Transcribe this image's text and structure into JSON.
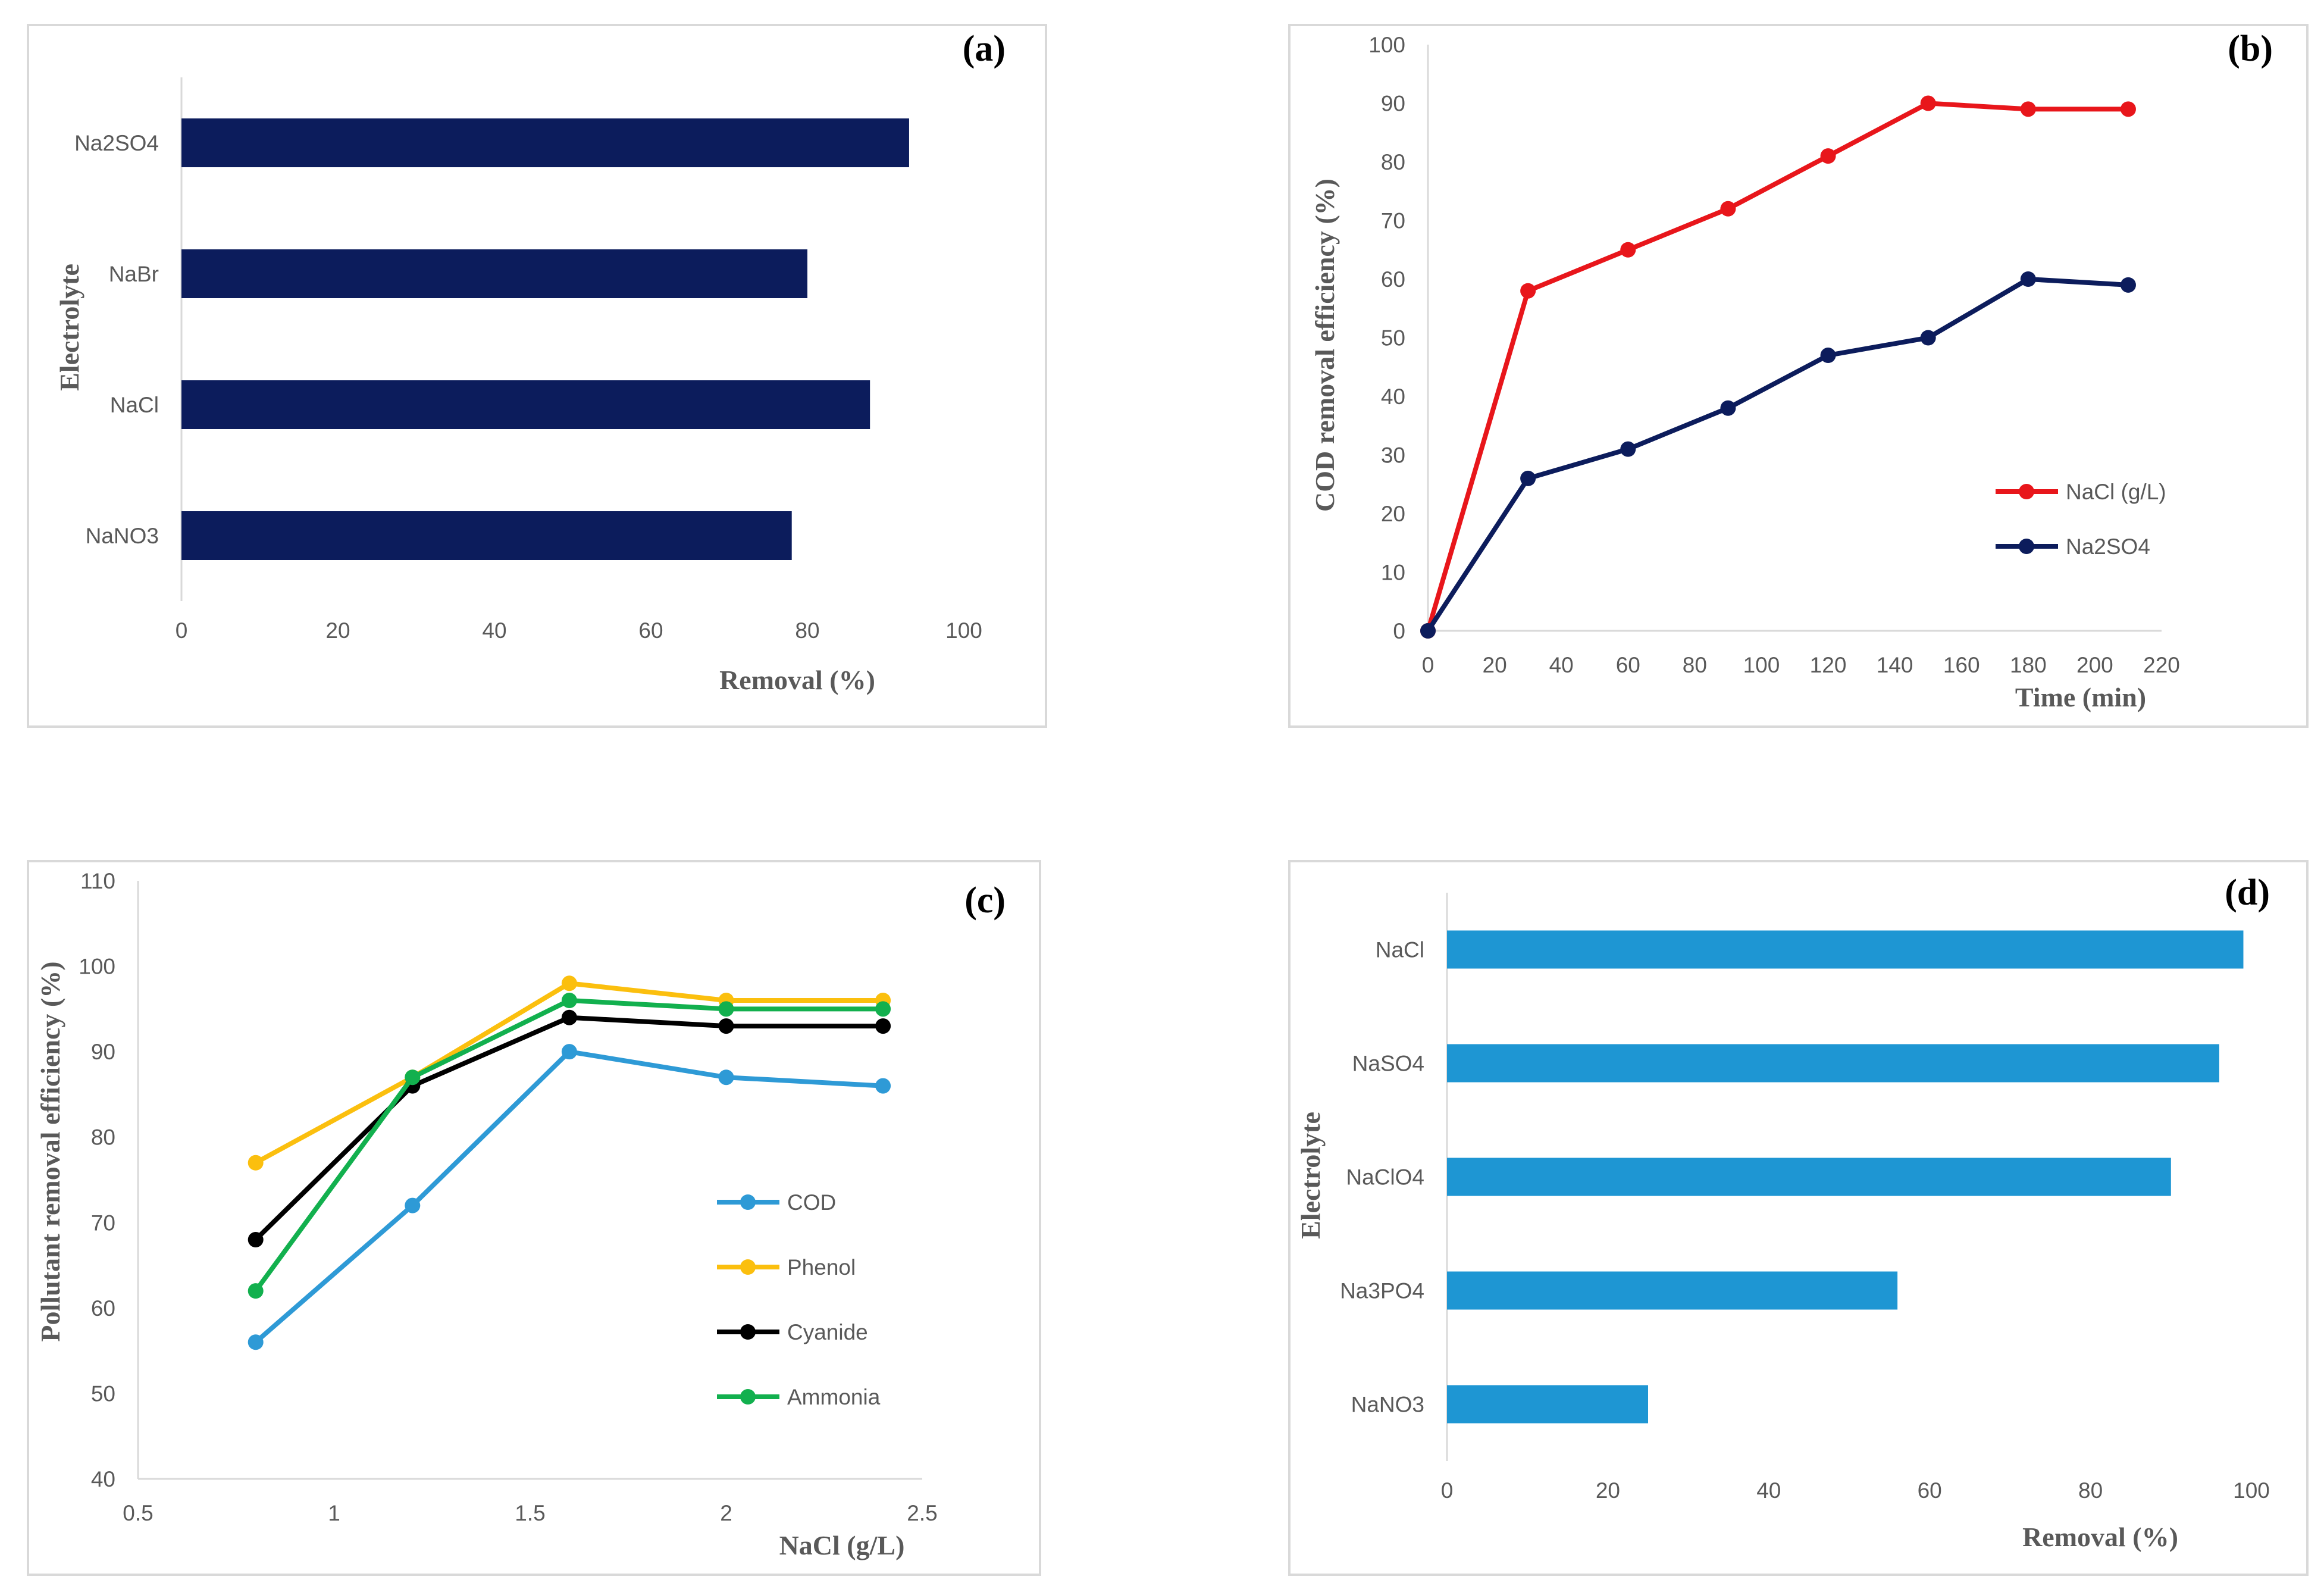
{
  "chart_data": [
    {
      "id": "a",
      "panel_label": "(a)",
      "type": "bar",
      "orientation": "horizontal",
      "categories": [
        "Na2SO4",
        "NaBr",
        "NaCl",
        "NaNO3"
      ],
      "values": [
        93,
        80,
        88,
        78
      ],
      "color": "#0c1c5c",
      "xlabel": "Removal (%)",
      "ylabel": "Electrolyte",
      "xlim": [
        0,
        100
      ],
      "xticks": [
        0,
        20,
        40,
        60,
        80,
        100
      ],
      "grid": false
    },
    {
      "id": "b",
      "panel_label": "(b)",
      "type": "line",
      "xlabel": "Time (min)",
      "ylabel": "COD removal efficiency (%)",
      "xlim": [
        0,
        220
      ],
      "ylim": [
        0,
        100
      ],
      "xticks": [
        0,
        20,
        40,
        60,
        80,
        100,
        120,
        140,
        160,
        180,
        200,
        220
      ],
      "yticks": [
        0,
        10,
        20,
        30,
        40,
        50,
        60,
        70,
        80,
        90,
        100
      ],
      "x": [
        0,
        30,
        60,
        90,
        120,
        150,
        180,
        210
      ],
      "series": [
        {
          "name": "NaCl (g/L)",
          "color": "#e8161b",
          "values": [
            0,
            58,
            65,
            72,
            81,
            90,
            89,
            89
          ]
        },
        {
          "name": "Na2SO4",
          "color": "#0c1c5c",
          "values": [
            0,
            26,
            31,
            38,
            47,
            50,
            60,
            59
          ]
        }
      ],
      "legend_position": "bottom-right",
      "grid": false
    },
    {
      "id": "c",
      "panel_label": "(c)",
      "type": "line",
      "xlabel": "NaCl (g/L)",
      "ylabel": "Pollutant removal efficiency (%)",
      "xlim": [
        0.5,
        2.5
      ],
      "ylim": [
        40,
        110
      ],
      "xticks": [
        0.5,
        1,
        1.5,
        2,
        2.5
      ],
      "yticks": [
        40,
        50,
        60,
        70,
        80,
        90,
        100,
        110
      ],
      "x": [
        0.8,
        1.2,
        1.6,
        2.0,
        2.4
      ],
      "series": [
        {
          "name": "COD",
          "color": "#2e9ad6",
          "values": [
            56,
            72,
            90,
            87,
            86
          ]
        },
        {
          "name": "Phenol",
          "color": "#fbbf0e",
          "values": [
            77,
            87,
            98,
            96,
            96
          ]
        },
        {
          "name": "Cyanide",
          "color": "#000000",
          "values": [
            68,
            86,
            94,
            93,
            93
          ]
        },
        {
          "name": "Ammonia",
          "color": "#12b04e",
          "values": [
            62,
            87,
            96,
            95,
            95
          ]
        }
      ],
      "legend_position": "center-right",
      "grid": false
    },
    {
      "id": "d",
      "panel_label": "(d)",
      "type": "bar",
      "orientation": "horizontal",
      "categories": [
        "NaCl",
        "NaSO4",
        "NaClO4",
        "Na3PO4",
        "NaNO3"
      ],
      "values": [
        99,
        96,
        90,
        56,
        25
      ],
      "color": "#1e96d3",
      "xlabel": "Removal (%)",
      "ylabel": "Electrolyte",
      "xlim": [
        0,
        100
      ],
      "xticks": [
        0,
        20,
        40,
        60,
        80,
        100
      ],
      "grid": false
    }
  ]
}
